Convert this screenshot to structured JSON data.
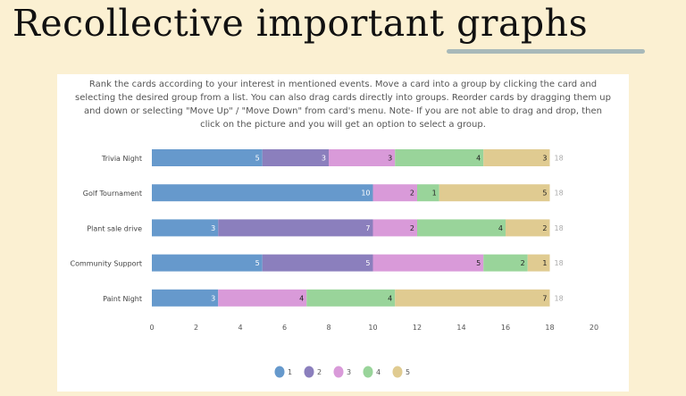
{
  "slide": {
    "title": "Recollective important graphs"
  },
  "question": {
    "instructions": "Rank the cards according to your interest in mentioned events. Move a card into a group by clicking the card and selecting the desired group from a list. You can also drag cards directly into groups. Reorder cards by dragging them up and down or selecting \"Move Up\" / \"Move Down\" from card's menu. Note- If you are not able to drag and drop, then click on the picture and you will get an option to select a group."
  },
  "chart_data": {
    "type": "bar",
    "orientation": "horizontal",
    "stacked": true,
    "title": "",
    "xlabel": "",
    "ylabel": "",
    "categories": [
      "Trivia Night",
      "Golf Tournament",
      "Plant sale drive",
      "Community Support",
      "Paint Night"
    ],
    "series": [
      {
        "name": "1",
        "color": "#6699cc",
        "values": [
          5,
          10,
          3,
          5,
          3
        ]
      },
      {
        "name": "2",
        "color": "#8b7fbd",
        "values": [
          3,
          0,
          7,
          5,
          0
        ]
      },
      {
        "name": "3",
        "color": "#d99ad9",
        "values": [
          3,
          2,
          2,
          5,
          4
        ]
      },
      {
        "name": "4",
        "color": "#99d49a",
        "values": [
          4,
          1,
          4,
          2,
          4
        ]
      },
      {
        "name": "5",
        "color": "#e0cb91",
        "values": [
          3,
          5,
          2,
          1,
          7
        ]
      }
    ],
    "totals": [
      18,
      18,
      18,
      18,
      18
    ],
    "xlim": [
      0,
      20
    ],
    "xticks": [
      0,
      2,
      4,
      6,
      8,
      10,
      12,
      14,
      16,
      18,
      20
    ],
    "grid": false,
    "legend_position": "bottom-center"
  }
}
